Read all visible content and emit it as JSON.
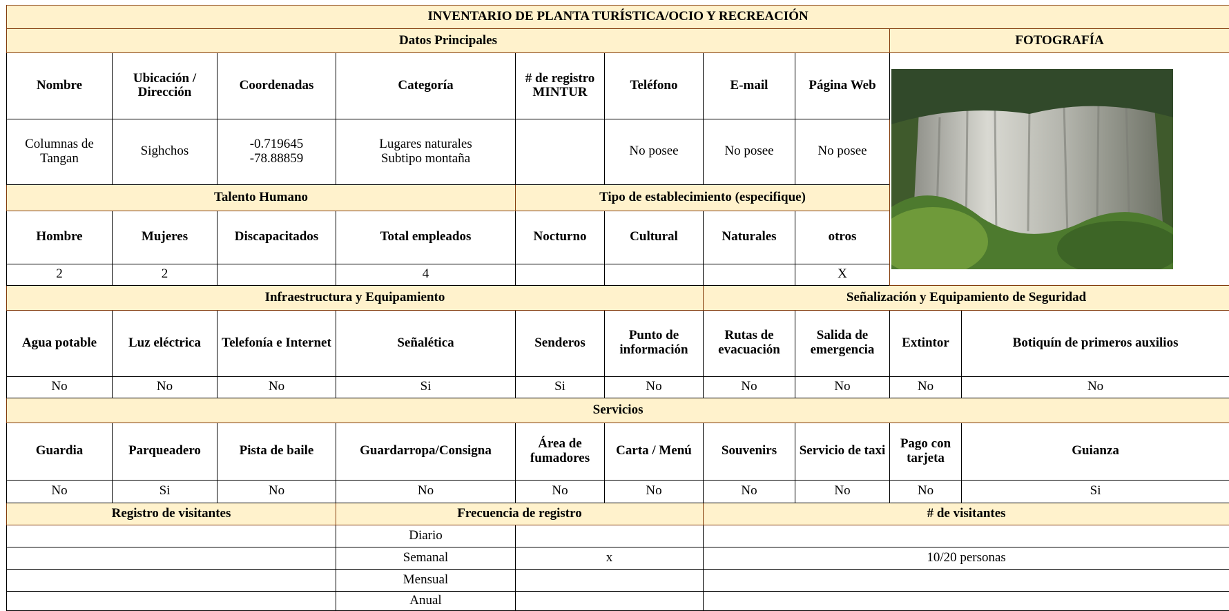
{
  "title": "INVENTARIO DE PLANTA TURÍSTICA/OCIO Y RECREACIÓN",
  "datos_principales": {
    "title": "Datos Principales",
    "headers": [
      "Nombre",
      "Ubicación / Dirección",
      "Coordenadas",
      "Categoría",
      "# de registro MINTUR",
      "Teléfono",
      "E-mail",
      "Página Web"
    ],
    "values": [
      "Columnas de\nTangan",
      "Sighchos",
      "-0.719645\n-78.88859",
      "Lugares naturales\nSubtipo montaña",
      null,
      "No posee",
      "No posee",
      "No posee"
    ]
  },
  "fotografia": "FOTOGRAFÍA",
  "talento_humano": {
    "title": "Talento Humano",
    "headers": [
      "Hombre",
      "Mujeres",
      "Discapacitados",
      "Total empleados"
    ],
    "values": [
      "2",
      "2",
      null,
      "4"
    ]
  },
  "tipo_establecimiento": {
    "title": "Tipo de establecimiento (especifique)",
    "headers": [
      "Nocturno",
      "Cultural",
      "Naturales",
      "otros"
    ],
    "values": [
      null,
      null,
      null,
      "X"
    ]
  },
  "infraestructura": {
    "title": "Infraestructura y Equipamiento",
    "headers": [
      "Agua potable",
      "Luz eléctrica",
      "Telefonía e Internet",
      "Señalética",
      "Senderos",
      "Punto de información"
    ],
    "values": [
      "No",
      "No",
      "No",
      "Si",
      "Si",
      "No"
    ]
  },
  "senalizacion": {
    "title": "Señalización y Equipamiento de Seguridad",
    "headers": [
      "Rutas de evacuación",
      "Salida de emergencia",
      "Extintor",
      "Botiquín de primeros auxilios"
    ],
    "values": [
      "No",
      "No",
      "No",
      "No"
    ]
  },
  "servicios": {
    "title": "Servicios",
    "headers": [
      "Guardia",
      "Parqueadero",
      "Pista de baile",
      "Guardarropa/Consigna",
      "Área de fumadores",
      "Carta / Menú",
      "Souvenirs",
      "Servicio de taxi",
      "Pago con tarjeta",
      "Guianza"
    ],
    "values": [
      "No",
      "Si",
      "No",
      "No",
      "No",
      "No",
      "No",
      "No",
      "No",
      "Si"
    ]
  },
  "registro": {
    "headers": [
      "Registro de visitantes",
      "Frecuencia de registro",
      "# de visitantes"
    ],
    "rows": [
      {
        "frecuencia": "Diario",
        "marca": null,
        "visitantes": null
      },
      {
        "frecuencia": "Semanal",
        "marca": "x",
        "visitantes": "10/20 personas"
      },
      {
        "frecuencia": "Mensual",
        "marca": null,
        "visitantes": null
      },
      {
        "frecuencia": "Anual",
        "marca": null,
        "visitantes": null
      }
    ]
  }
}
